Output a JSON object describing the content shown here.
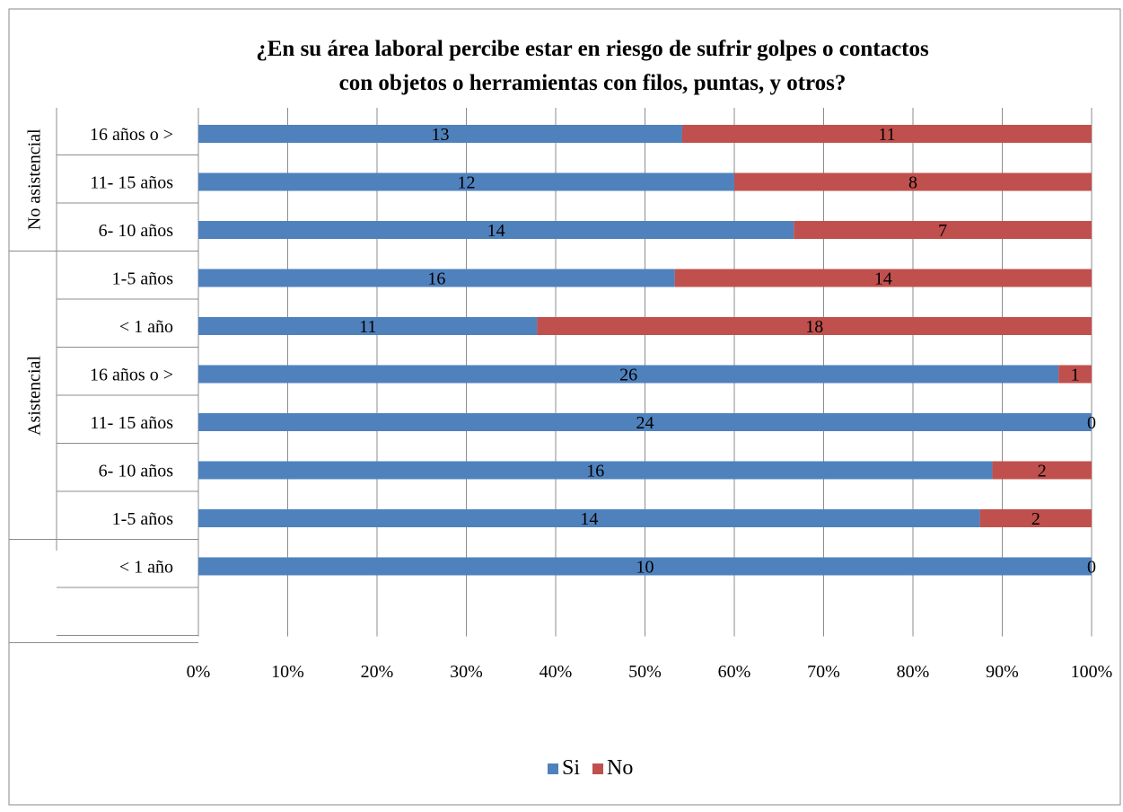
{
  "chart_data": {
    "type": "bar",
    "orientation": "horizontal",
    "stacking": "percent",
    "title": "¿En su área laboral percibe estar en riesgo de sufrir golpes o contactos con objetos  o herramientas con filos, puntas,  y otros?",
    "title_lines": [
      "¿En su área laboral percibe estar en riesgo de sufrir golpes o contactos",
      "con objetos  o herramientas con filos, puntas,  y otros?"
    ],
    "groups": [
      {
        "label": "No asistencial",
        "categories": [
          "16 años o >",
          "11- 15 años",
          "6- 10 años"
        ]
      },
      {
        "label": "Asistencial",
        "categories": [
          "1-5 años",
          "< 1 año",
          "16 años o >",
          "11- 15 años",
          "6- 10 años",
          "1-5 años"
        ]
      },
      {
        "label": "",
        "categories": [
          "< 1 año"
        ]
      }
    ],
    "categories": [
      "16 años o >",
      "11- 15 años",
      "6- 10 años",
      "1-5 años",
      "< 1 año",
      "16 años o >",
      "11- 15 años",
      "6- 10 años",
      "1-5 años",
      "< 1 año"
    ],
    "series": [
      {
        "name": "Si",
        "color": "#4f81bd",
        "values": [
          13,
          12,
          14,
          16,
          11,
          26,
          24,
          16,
          14,
          10
        ]
      },
      {
        "name": "No",
        "color": "#c0504d",
        "values": [
          11,
          8,
          7,
          14,
          18,
          1,
          0,
          2,
          2,
          0
        ]
      }
    ],
    "x_ticks": [
      "0%",
      "10%",
      "20%",
      "30%",
      "40%",
      "50%",
      "60%",
      "70%",
      "80%",
      "90%",
      "100%"
    ],
    "xlim": [
      0,
      100
    ],
    "xlabel": "",
    "ylabel": "",
    "grid": "vertical",
    "legend_position": "bottom"
  }
}
